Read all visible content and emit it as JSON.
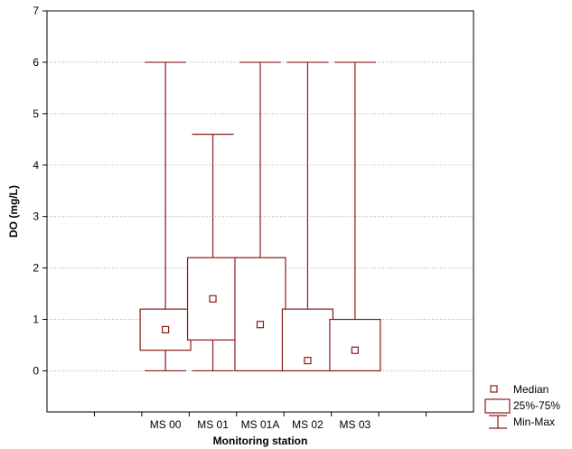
{
  "chart_data": {
    "type": "box",
    "title": "",
    "xlabel": "Monitoring station",
    "ylabel": "DO (mg/L)",
    "ylim": [
      -0.8,
      7
    ],
    "yticks": [
      0,
      1,
      2,
      3,
      4,
      5,
      6,
      7
    ],
    "grid": "horizontal dotted",
    "categories": [
      "MS 00",
      "MS 01",
      "MS 01A",
      "MS 02",
      "MS 03"
    ],
    "boxes": [
      {
        "category": "MS 00",
        "min": 0,
        "q1": 0.4,
        "median": 0.8,
        "q3": 1.2,
        "max": 6.0
      },
      {
        "category": "MS 01",
        "min": 0,
        "q1": 0.6,
        "median": 1.4,
        "q3": 2.2,
        "max": 4.6
      },
      {
        "category": "MS 01A",
        "min": 0,
        "q1": 0.0,
        "median": 0.9,
        "q3": 2.2,
        "max": 6.0
      },
      {
        "category": "MS 02",
        "min": 0,
        "q1": 0.0,
        "median": 0.2,
        "q3": 1.2,
        "max": 6.0
      },
      {
        "category": "MS 03",
        "min": 0,
        "q1": 0.0,
        "median": 0.4,
        "q3": 1.0,
        "max": 6.0
      }
    ],
    "legend": {
      "position": "bottom-right",
      "entries": [
        {
          "symbol": "median",
          "label": "Median"
        },
        {
          "symbol": "box",
          "label": "25%-75%"
        },
        {
          "symbol": "whisker",
          "label": "Min-Max"
        }
      ]
    },
    "colors": {
      "box": "#8b1a1a",
      "grid": "#9a9a9a",
      "axis": "#000000"
    }
  }
}
